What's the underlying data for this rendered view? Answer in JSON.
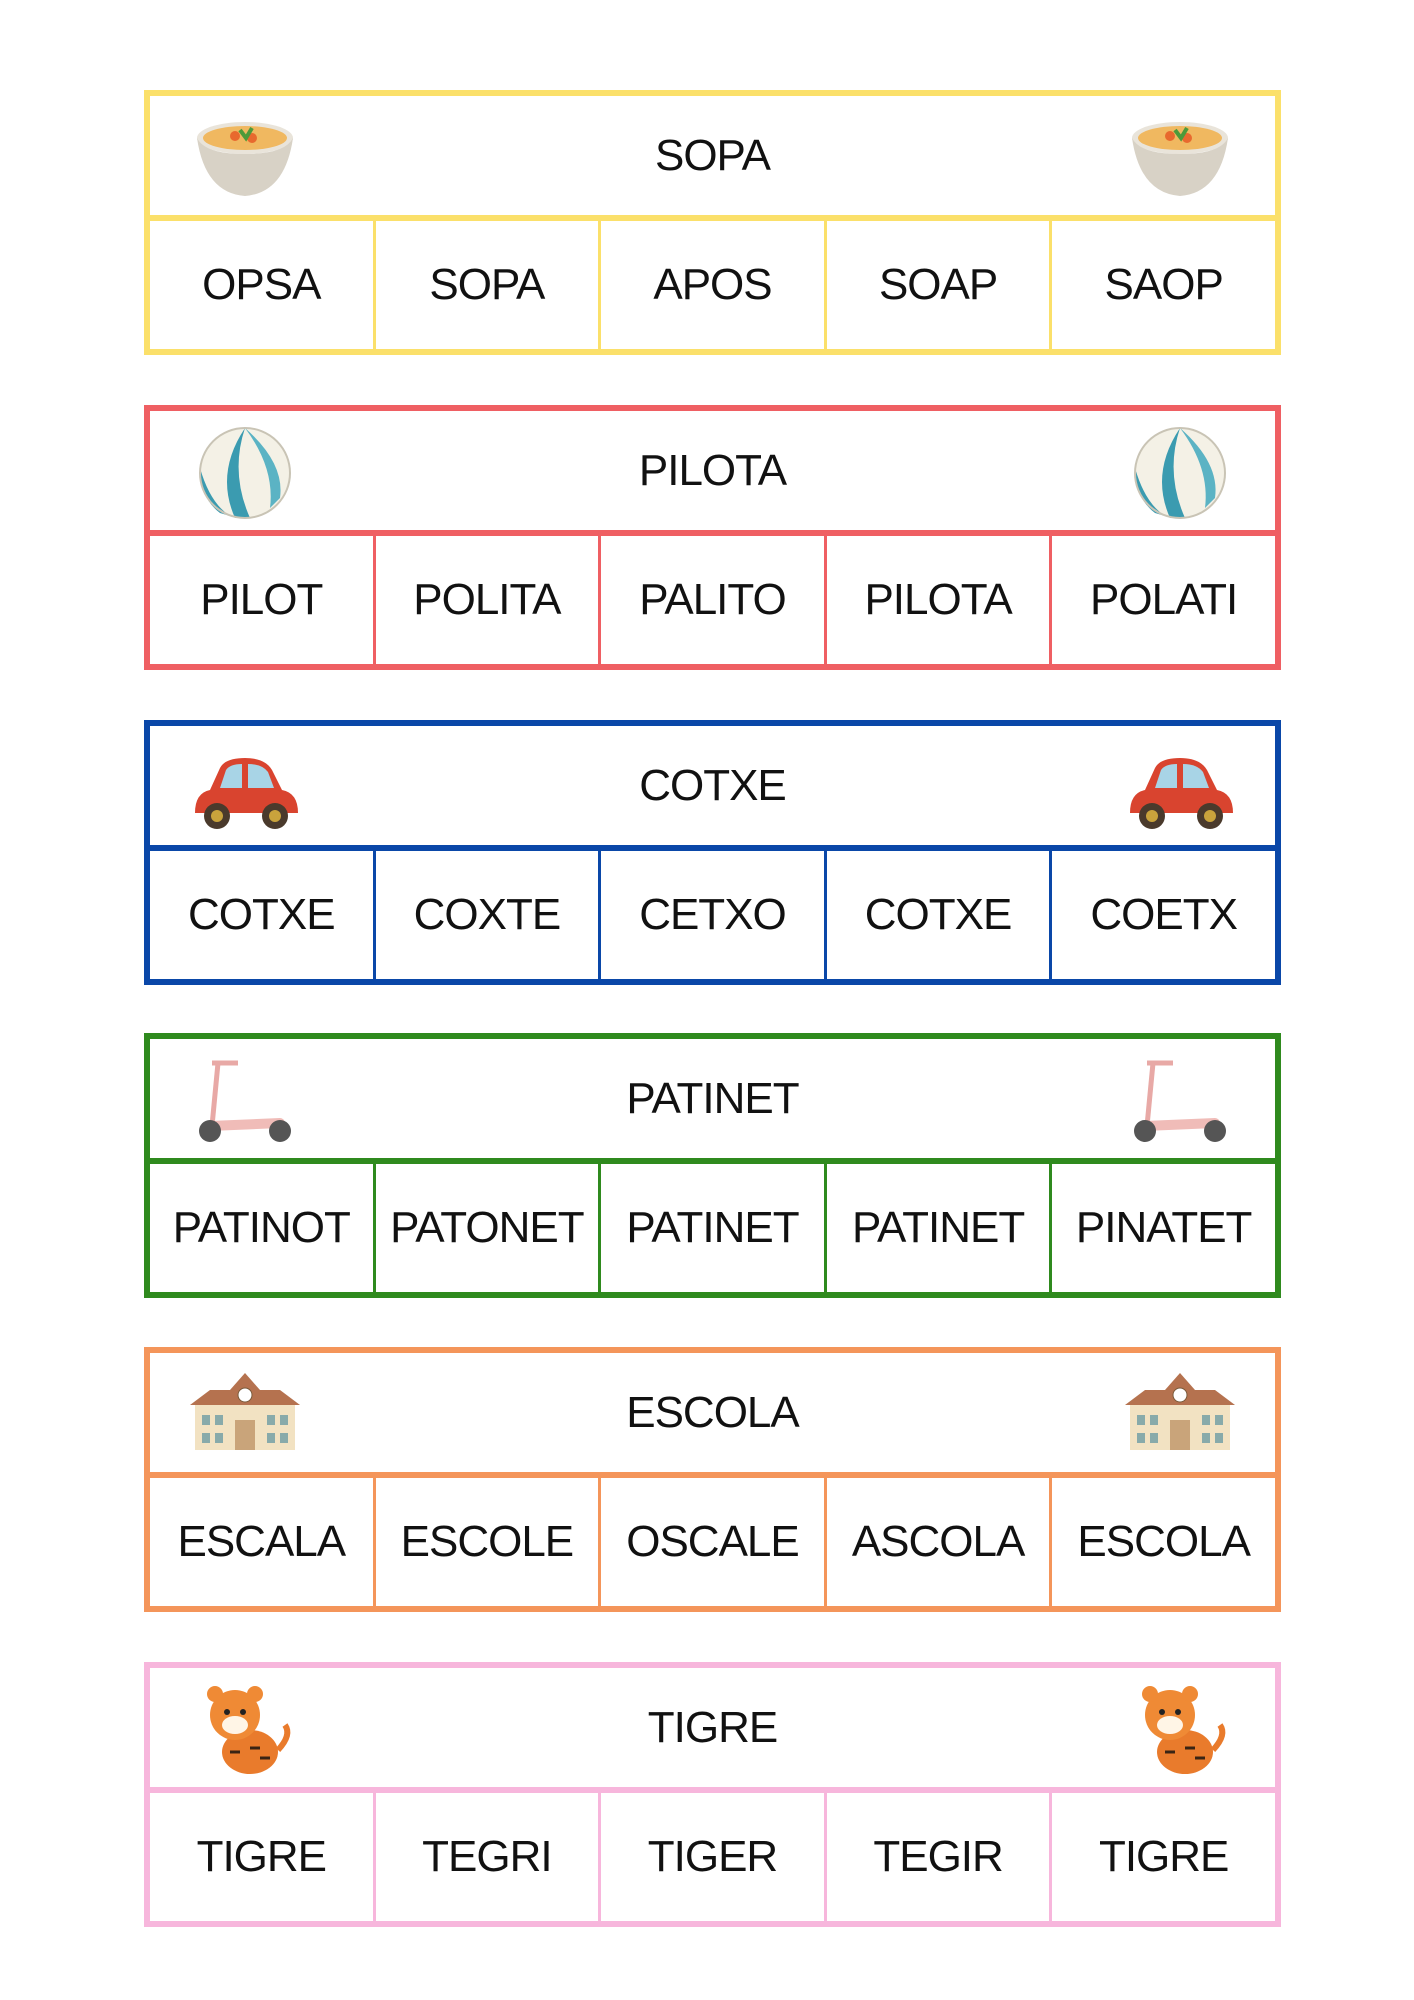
{
  "cards": [
    {
      "title": "SOPA",
      "icon": "soup-bowl-icon",
      "color": "#fbe06a",
      "options": [
        "OPSA",
        "SOPA",
        "APOS",
        "SOAP",
        "SAOP"
      ]
    },
    {
      "title": "PILOTA",
      "icon": "beach-ball-icon",
      "color": "#ef5f63",
      "options": [
        "PILOT",
        "POLITA",
        "PALITO",
        "PILOTA",
        "POLATI"
      ]
    },
    {
      "title": "COTXE",
      "icon": "car-icon",
      "color": "#0a47a8",
      "options": [
        "COTXE",
        "COXTE",
        "CETXO",
        "COTXE",
        "COETX"
      ]
    },
    {
      "title": "PATINET",
      "icon": "scooter-icon",
      "color": "#2f8a1e",
      "options": [
        "PATINOT",
        "PATONET",
        "PATINET",
        "PATINET",
        "PINATET"
      ]
    },
    {
      "title": "ESCOLA",
      "icon": "school-icon",
      "color": "#f4955a",
      "options": [
        "ESCALA",
        "ESCOLE",
        "OSCALE",
        "ASCOLA",
        "ESCOLA"
      ]
    },
    {
      "title": "TIGRE",
      "icon": "tiger-icon",
      "color": "#f7b6dc",
      "options": [
        "TIGRE",
        "TEGRI",
        "TIGER",
        "TEGIR",
        "TIGRE"
      ]
    }
  ]
}
